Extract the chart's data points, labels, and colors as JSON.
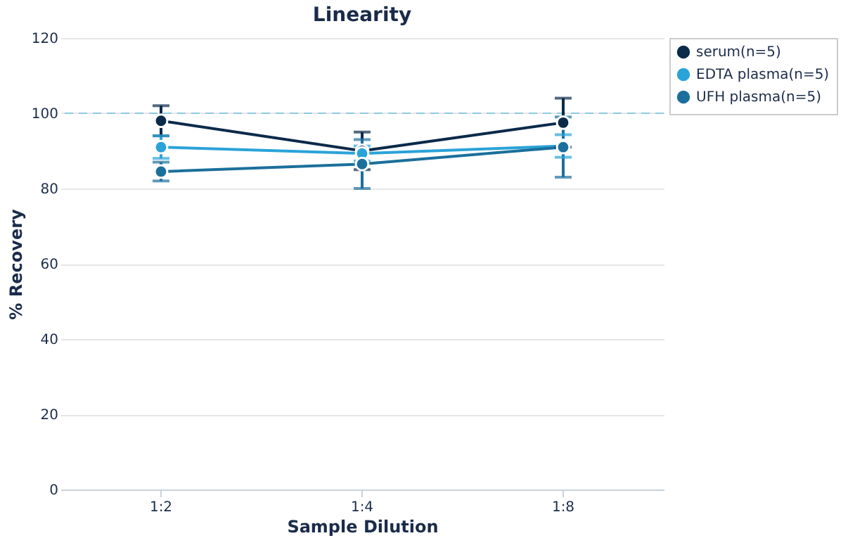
{
  "chart_data": {
    "type": "line",
    "title": "Linearity",
    "xlabel": "Sample Dilution",
    "ylabel": "% Recovery",
    "categories": [
      "1:2",
      "1:4",
      "1:8"
    ],
    "series": [
      {
        "name": "serum(n=5)",
        "color": "#0b2a4a",
        "values": [
          98,
          90,
          97.5
        ],
        "errors": [
          4,
          5,
          6.5
        ]
      },
      {
        "name": "EDTA plasma(n=5)",
        "color": "#2aa3d8",
        "values": [
          91,
          89.3,
          91.3
        ],
        "errors": [
          3,
          2,
          3
        ]
      },
      {
        "name": "UFH plasma(n=5)",
        "color": "#1b6f9c",
        "values": [
          84.5,
          86.5,
          91
        ],
        "errors": [
          2.5,
          6.5,
          8
        ]
      }
    ],
    "ylim": [
      0,
      120
    ],
    "yticks": [
      0,
      20,
      40,
      60,
      80,
      100,
      120
    ],
    "grid": "y",
    "legend": "top right",
    "marker": "circle",
    "ref_lines": [
      {
        "axis": "y",
        "value": 100,
        "color": "#8ec9e0",
        "line_style": "dashed"
      }
    ]
  }
}
